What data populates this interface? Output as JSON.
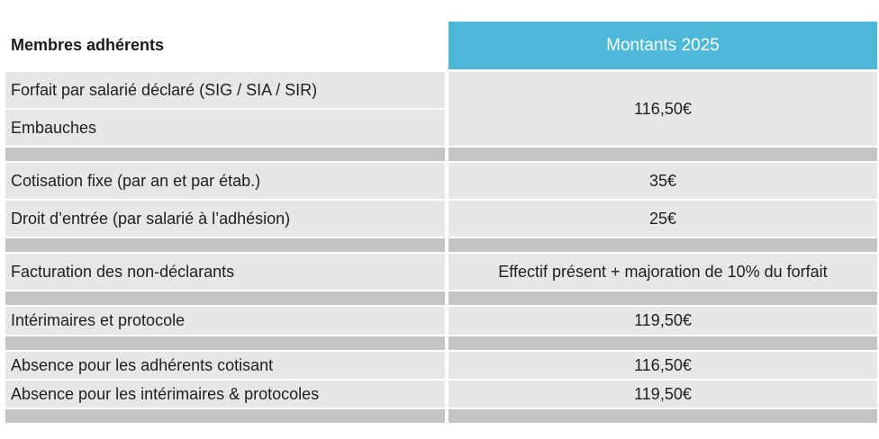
{
  "header": {
    "col1": "Membres adhérents",
    "col2": "Montants 2025"
  },
  "group1": {
    "labels": [
      "Forfait par salarié déclaré (SIG / SIA / SIR)",
      "Embauches"
    ],
    "value": "116,50€"
  },
  "rows": [
    {
      "label": "Cotisation fixe (par an et par étab.)",
      "value": "35€"
    },
    {
      "label": "Droit d’entrée (par salarié à l’adhésion)",
      "value": "25€"
    },
    {
      "label": "Facturation des non-déclarants",
      "value": "Effectif présent + majoration de 10% du forfait"
    },
    {
      "label": "Intérimaires et protocole",
      "value": "119,50€"
    },
    {
      "label": "Absence pour les adhérents cotisant",
      "value": "116,50€"
    },
    {
      "label": "Absence pour les intérimaires & protocoles",
      "value": "119,50€"
    }
  ],
  "colors": {
    "header_accent": "#4db8d8",
    "cell_bg": "#e7e7e7",
    "separator": "#c4c4c4"
  }
}
